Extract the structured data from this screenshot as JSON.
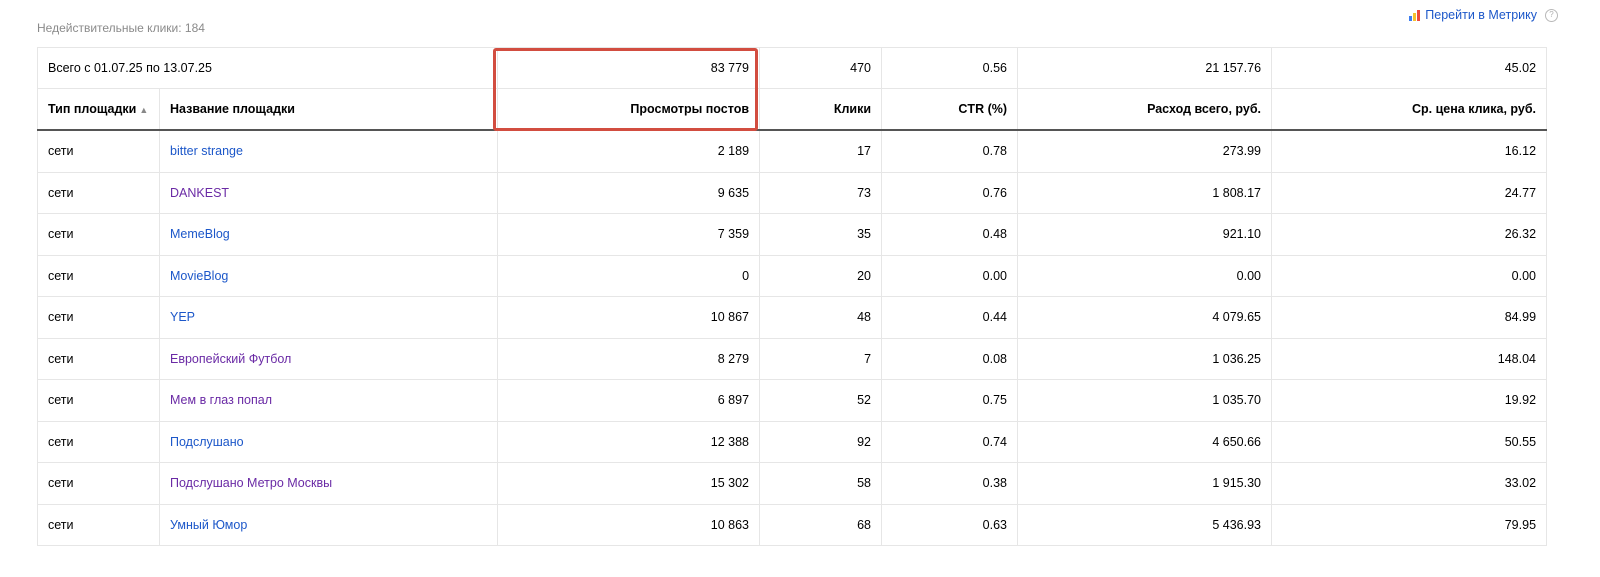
{
  "header": {
    "invalid_clicks": "Недействительные клики: 184",
    "metrika_link": "Перейти в Метрику",
    "help_glyph": "?"
  },
  "table": {
    "total": {
      "label": "Всего с 01.07.25 по 13.07.25",
      "views": "83 779",
      "clicks": "470",
      "ctr": "0.56",
      "spend": "21 157.76",
      "cpc": "45.02"
    },
    "columns": {
      "type": "Тип площадки",
      "sort_glyph": "▲",
      "name": "Название площадки",
      "views": "Просмотры постов",
      "clicks": "Клики",
      "ctr": "CTR (%)",
      "spend": "Расход всего, руб.",
      "cpc": "Ср. цена клика, руб."
    },
    "rows": [
      {
        "type": "сети",
        "name": "bitter strange",
        "visited": false,
        "views": "2 189",
        "clicks": "17",
        "ctr": "0.78",
        "spend": "273.99",
        "cpc": "16.12"
      },
      {
        "type": "сети",
        "name": "DANKEST",
        "visited": true,
        "views": "9 635",
        "clicks": "73",
        "ctr": "0.76",
        "spend": "1 808.17",
        "cpc": "24.77"
      },
      {
        "type": "сети",
        "name": "MemeBlog",
        "visited": false,
        "views": "7 359",
        "clicks": "35",
        "ctr": "0.48",
        "spend": "921.10",
        "cpc": "26.32"
      },
      {
        "type": "сети",
        "name": "MovieBlog",
        "visited": false,
        "views": "0",
        "clicks": "20",
        "ctr": "0.00",
        "spend": "0.00",
        "cpc": "0.00"
      },
      {
        "type": "сети",
        "name": "YEP",
        "visited": false,
        "views": "10 867",
        "clicks": "48",
        "ctr": "0.44",
        "spend": "4 079.65",
        "cpc": "84.99"
      },
      {
        "type": "сети",
        "name": "Европейский Футбол",
        "visited": true,
        "views": "8 279",
        "clicks": "7",
        "ctr": "0.08",
        "spend": "1 036.25",
        "cpc": "148.04"
      },
      {
        "type": "сети",
        "name": "Мем в глаз попал",
        "visited": true,
        "views": "6 897",
        "clicks": "52",
        "ctr": "0.75",
        "spend": "1 035.70",
        "cpc": "19.92"
      },
      {
        "type": "сети",
        "name": "Подслушано",
        "visited": false,
        "views": "12 388",
        "clicks": "92",
        "ctr": "0.74",
        "spend": "4 650.66",
        "cpc": "50.55"
      },
      {
        "type": "сети",
        "name": "Подслушано Метро Москвы",
        "visited": true,
        "views": "15 302",
        "clicks": "58",
        "ctr": "0.38",
        "spend": "1 915.30",
        "cpc": "33.02"
      },
      {
        "type": "сети",
        "name": "Умный Юмор",
        "visited": false,
        "views": "10 863",
        "clicks": "68",
        "ctr": "0.63",
        "spend": "5 436.93",
        "cpc": "79.95"
      }
    ]
  },
  "colors": {
    "link": "#1c57c9",
    "visited_link": "#6a2aa5",
    "highlight": "#d24d40"
  }
}
